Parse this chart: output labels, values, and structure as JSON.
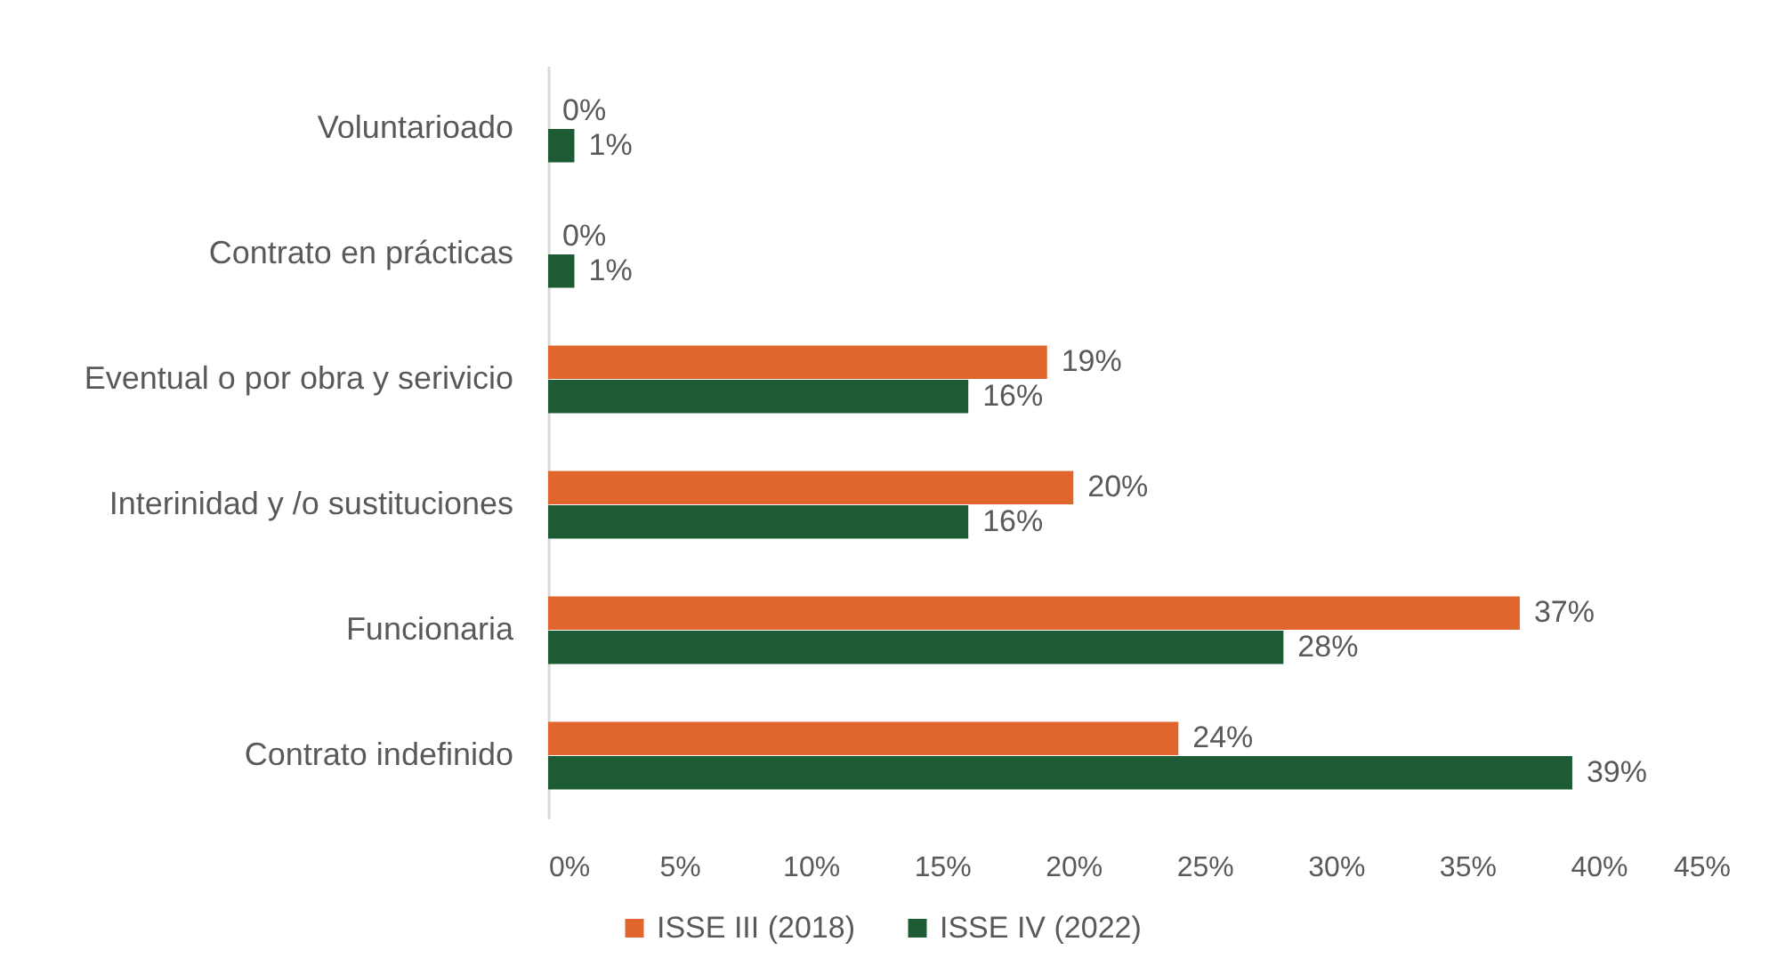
{
  "chart_data": {
    "type": "bar",
    "orientation": "horizontal",
    "categories": [
      "Voluntarioado",
      "Contrato en prácticas",
      "Eventual o por obra y serivicio",
      "Interinidad y /o sustituciones",
      "Funcionaria",
      "Contrato indefinido"
    ],
    "series": [
      {
        "name": "ISSE III (2018)",
        "color": "#e1662d",
        "values": [
          0,
          0,
          19,
          20,
          37,
          24
        ],
        "value_labels": [
          "0%",
          "0%",
          "19%",
          "20%",
          "37%",
          "24%"
        ]
      },
      {
        "name": "ISSE IV (2022)",
        "color": "#1d5b35",
        "values": [
          1,
          1,
          16,
          16,
          28,
          39
        ],
        "value_labels": [
          "1%",
          "1%",
          "16%",
          "16%",
          "28%",
          "39%"
        ]
      }
    ],
    "xlim": [
      0,
      45
    ],
    "xticks": [
      {
        "value": 0,
        "label": "0%"
      },
      {
        "value": 5,
        "label": "5%"
      },
      {
        "value": 10,
        "label": "10%"
      },
      {
        "value": 15,
        "label": "15%"
      },
      {
        "value": 20,
        "label": "20%"
      },
      {
        "value": 25,
        "label": "25%"
      },
      {
        "value": 30,
        "label": "30%"
      },
      {
        "value": 35,
        "label": "35%"
      },
      {
        "value": 40,
        "label": "40%"
      },
      {
        "value": 45,
        "label": "45%"
      }
    ],
    "legend": "bottom"
  }
}
